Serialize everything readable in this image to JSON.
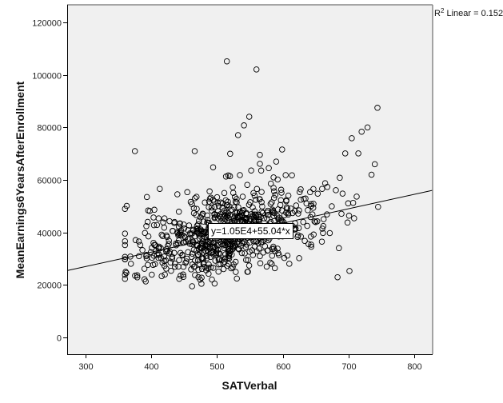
{
  "chart_data": {
    "type": "scatter",
    "title": "",
    "xlabel": "SATVerbal",
    "ylabel": "MeanEarnings6YearsAfterEnrollment",
    "xlim": [
      273,
      828
    ],
    "ylim": [
      -6000,
      127000
    ],
    "x_ticks": [
      300,
      400,
      500,
      600,
      700,
      800
    ],
    "y_ticks": [
      0,
      20000,
      40000,
      60000,
      80000,
      100000,
      120000
    ],
    "grid": false,
    "legend": null,
    "fit_line": {
      "type": "linear",
      "intercept": 10500,
      "slope": 55.04,
      "equation_label": "y=1.05E4+55.04*x",
      "r2_label_prefix": "R",
      "r2_label_sup": "2",
      "r2_label_suffix": " Linear = 0.152"
    },
    "notable_points": [
      {
        "x": 515,
        "y": 105200
      },
      {
        "x": 560,
        "y": 102100
      },
      {
        "x": 549,
        "y": 84100
      },
      {
        "x": 541,
        "y": 80800
      },
      {
        "x": 532,
        "y": 77100
      },
      {
        "x": 375,
        "y": 71000
      },
      {
        "x": 466,
        "y": 71000
      },
      {
        "x": 744,
        "y": 87500
      },
      {
        "x": 729,
        "y": 80000
      },
      {
        "x": 720,
        "y": 78400
      },
      {
        "x": 705,
        "y": 75900
      },
      {
        "x": 695,
        "y": 70100
      },
      {
        "x": 715,
        "y": 70100
      },
      {
        "x": 599,
        "y": 71600
      },
      {
        "x": 462,
        "y": 19500
      },
      {
        "x": 361,
        "y": 25000
      },
      {
        "x": 740,
        "y": 66000
      },
      {
        "x": 735,
        "y": 62000
      },
      {
        "x": 520,
        "y": 70000
      },
      {
        "x": 590,
        "y": 67000
      }
    ],
    "cloud": {
      "n": 780,
      "x_mean": 520,
      "x_sd": 68,
      "x_min": 360,
      "x_max": 745,
      "resid_sd": 7800,
      "y_min": 19000,
      "seed": 1337
    }
  },
  "annotations": {
    "r2_prefix": "R",
    "r2_sup": "2",
    "r2_suffix": " Linear = 0.152",
    "equation": "y=1.05E4+55.04*x"
  },
  "axes": {
    "x_title": "SATVerbal",
    "y_title": "MeanEarnings6YearsAfterEnrollment",
    "x_tick_labels": [
      "300",
      "400",
      "500",
      "600",
      "700",
      "800"
    ],
    "y_tick_labels": [
      "0",
      "20000",
      "40000",
      "60000",
      "80000",
      "100000",
      "120000"
    ]
  },
  "colors": {
    "plot_bg": "#f0f0f0",
    "frame": "#000000",
    "marker": "#000000",
    "fit_line": "#000000"
  }
}
